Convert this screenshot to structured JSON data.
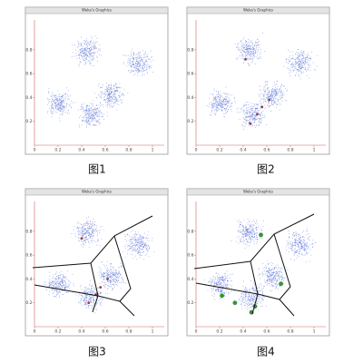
{
  "chart_data": [
    {
      "type": "scatter",
      "title": "Weka's Graphics",
      "caption": "图1",
      "x": [
        0.45,
        0.88,
        0.21,
        0.65,
        0.48
      ],
      "values": [
        0.79,
        0.69,
        0.35,
        0.42,
        0.25
      ],
      "color": "#5b74d6",
      "xlim": [
        0,
        1.1
      ],
      "ylim": [
        0,
        1.05
      ],
      "xticks": [
        0,
        0.2,
        0.4,
        0.6,
        0.8,
        1
      ],
      "yticks": [
        0.2,
        0.4,
        0.6,
        0.8
      ]
    },
    {
      "type": "scatter",
      "title": "Weka's Graphics",
      "caption": "图2",
      "x": [
        0.45,
        0.88,
        0.21,
        0.65,
        0.48
      ],
      "values": [
        0.79,
        0.69,
        0.35,
        0.42,
        0.25
      ],
      "color": "#5b74d6",
      "centroid_x": [
        0.42,
        0.46,
        0.52,
        0.56,
        0.62
      ],
      "centroid_y": [
        0.72,
        0.18,
        0.26,
        0.32,
        0.38
      ],
      "centroid_color": "#d02020",
      "xlim": [
        0,
        1.1
      ],
      "ylim": [
        0,
        1.05
      ],
      "xticks": [
        0,
        0.2,
        0.4,
        0.6,
        0.8,
        1
      ],
      "yticks": [
        0.2,
        0.4,
        0.6,
        0.8
      ]
    },
    {
      "type": "scatter",
      "title": "Weka's Graphics",
      "caption": "图3",
      "x": [
        0.45,
        0.88,
        0.21,
        0.65,
        0.48
      ],
      "values": [
        0.79,
        0.69,
        0.35,
        0.42,
        0.25
      ],
      "color": "#5b74d6",
      "centroid_x": [
        0.4,
        0.46,
        0.52,
        0.56,
        0.62
      ],
      "centroid_y": [
        0.74,
        0.2,
        0.27,
        0.33,
        0.4
      ],
      "centroid_color": "#d02020",
      "xlim": [
        0,
        1.1
      ],
      "ylim": [
        0,
        1.05
      ],
      "xticks": [
        0,
        0.2,
        0.4,
        0.6,
        0.8,
        1
      ],
      "yticks": [
        0.2,
        0.4,
        0.6,
        0.8
      ]
    },
    {
      "type": "scatter",
      "title": "Weka's Graphics",
      "caption": "图4",
      "x": [
        0.45,
        0.88,
        0.21,
        0.65,
        0.48
      ],
      "values": [
        0.79,
        0.69,
        0.35,
        0.42,
        0.25
      ],
      "color": "#5b74d6",
      "centroid_x": [
        0.55,
        0.22,
        0.33,
        0.5,
        0.72,
        0.47
      ],
      "centroid_y": [
        0.77,
        0.26,
        0.2,
        0.17,
        0.36,
        0.12
      ],
      "centroid_color": "#2aa02a",
      "xlim": [
        0,
        1.1
      ],
      "ylim": [
        0,
        1.05
      ],
      "xticks": [
        0,
        0.2,
        0.4,
        0.6,
        0.8,
        1
      ],
      "yticks": [
        0.2,
        0.4,
        0.6,
        0.8
      ]
    }
  ]
}
